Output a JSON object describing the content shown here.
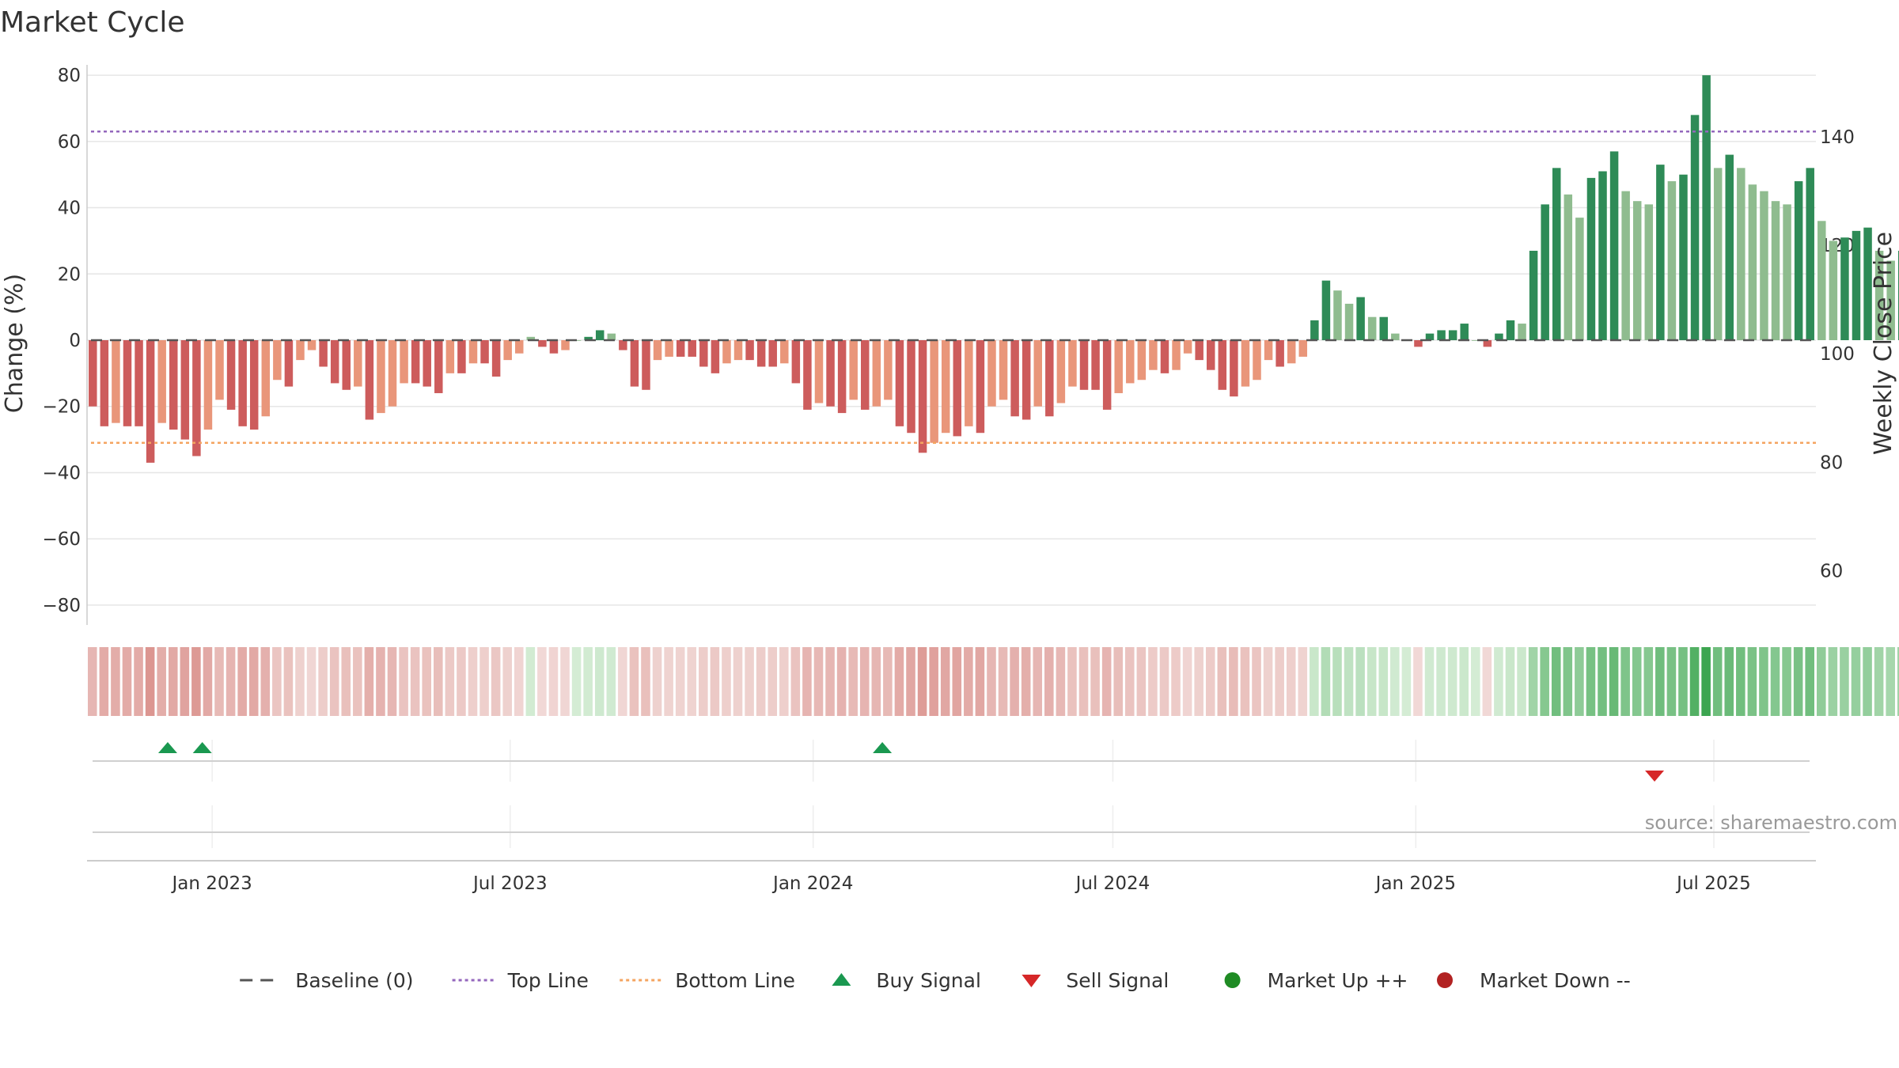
{
  "chart_data": {
    "type": "bar",
    "title": "Market Cycle",
    "ylabel_left": "Change (%)",
    "ylabel_right": "Weekly Close Price",
    "ylim_left": [
      -86,
      86
    ],
    "ylim_right": [
      50,
      155
    ],
    "yticks_left": [
      80,
      60,
      40,
      20,
      0,
      -20,
      -40,
      -60,
      -80
    ],
    "ytick_labels_left": [
      "80",
      "60",
      "40",
      "20",
      "0",
      "−20",
      "−40",
      "−60",
      "−80"
    ],
    "yticks_right": [
      140,
      120,
      100,
      80,
      60
    ],
    "ytick_labels_right": [
      "140",
      "120",
      "100",
      "80",
      "60"
    ],
    "x_start": "2022-10-17",
    "x_end": "2025-09-01",
    "x_ticks": [
      {
        "date": "2023-01-01",
        "label": "Jan 2023"
      },
      {
        "date": "2023-07-01",
        "label": "Jul 2023"
      },
      {
        "date": "2024-01-01",
        "label": "Jan 2024"
      },
      {
        "date": "2024-07-01",
        "label": "Jul 2024"
      },
      {
        "date": "2025-01-01",
        "label": "Jan 2025"
      },
      {
        "date": "2025-07-01",
        "label": "Jul 2025"
      }
    ],
    "top_line": 63,
    "bottom_line": -31,
    "baseline": 0,
    "weekly_start": "2022-10-17",
    "values": [
      -20,
      -26,
      -25,
      -26,
      -26,
      -37,
      -25,
      -27,
      -30,
      -35,
      -27,
      -18,
      -21,
      -26,
      -27,
      -23,
      -12,
      -14,
      -6,
      -3,
      -8,
      -13,
      -15,
      -14,
      -24,
      -22,
      -20,
      -13,
      -13,
      -14,
      -16,
      -10,
      -10,
      -7,
      -7,
      -11,
      -6,
      -4,
      1,
      -2,
      -4,
      -3,
      0,
      1,
      3,
      2,
      -3,
      -14,
      -15,
      -6,
      -5,
      -5,
      -5,
      -8,
      -10,
      -7,
      -6,
      -6,
      -8,
      -8,
      -7,
      -13,
      -21,
      -19,
      -20,
      -22,
      -18,
      -21,
      -20,
      -18,
      -26,
      -28,
      -34,
      -31,
      -28,
      -29,
      -26,
      -28,
      -20,
      -18,
      -23,
      -24,
      -20,
      -23,
      -19,
      -14,
      -15,
      -15,
      -21,
      -16,
      -13,
      -12,
      -9,
      -10,
      -9,
      -4,
      -6,
      -9,
      -15,
      -17,
      -14,
      -12,
      -6,
      -8,
      -7,
      -5,
      6,
      18,
      15,
      11,
      13,
      7,
      7,
      2,
      0,
      -2,
      2,
      3,
      3,
      5,
      0,
      -2,
      2,
      6,
      5,
      27,
      41,
      52,
      44,
      37,
      49,
      51,
      57,
      45,
      42,
      41,
      53,
      48,
      50,
      68,
      80,
      52,
      56,
      52,
      47,
      45,
      42,
      41,
      48,
      52,
      36,
      30,
      31,
      33,
      34,
      27,
      24,
      27
    ],
    "band_values": [
      -20,
      -26,
      -25,
      -26,
      -26,
      -37,
      -25,
      -27,
      -30,
      -35,
      -27,
      -18,
      -21,
      -26,
      -27,
      -23,
      -12,
      -14,
      -6,
      -3,
      -8,
      -13,
      -15,
      -14,
      -24,
      -22,
      -20,
      -13,
      -13,
      -14,
      -16,
      -10,
      -10,
      -7,
      -7,
      -11,
      -6,
      -4,
      1,
      -2,
      -4,
      -3,
      0,
      1,
      3,
      2,
      -3,
      -14,
      -15,
      -6,
      -5,
      -5,
      -5,
      -8,
      -10,
      -7,
      -6,
      -6,
      -8,
      -8,
      -7,
      -13,
      -21,
      -19,
      -20,
      -22,
      -18,
      -21,
      -20,
      -18,
      -26,
      -28,
      -34,
      -31,
      -28,
      -29,
      -26,
      -28,
      -20,
      -18,
      -23,
      -24,
      -20,
      -23,
      -19,
      -14,
      -15,
      -15,
      -21,
      -16,
      -13,
      -12,
      -9,
      -10,
      -9,
      -4,
      -6,
      -9,
      -15,
      -17,
      -14,
      -12,
      -6,
      -8,
      -7,
      -5,
      6,
      18,
      15,
      11,
      13,
      7,
      7,
      2,
      0,
      -2,
      2,
      3,
      3,
      5,
      0,
      -2,
      2,
      6,
      5,
      27,
      41,
      52,
      44,
      37,
      49,
      51,
      57,
      45,
      42,
      41,
      53,
      48,
      50,
      68,
      80,
      52,
      56,
      52,
      47,
      45,
      42,
      41,
      48,
      52,
      36,
      30,
      31,
      33,
      34,
      27,
      24,
      27
    ],
    "buy_signals": [
      "2022-12-05",
      "2022-12-26",
      "2024-02-12"
    ],
    "sell_signals": [
      "2025-05-26"
    ],
    "colors": {
      "down_strong": "#cd5c5c",
      "down_weak": "#e9967a",
      "up_strong": "#2e8b57",
      "up_weak": "#8fbc8f",
      "top_line": "#9467bd",
      "bottom_line": "#f4a460",
      "baseline": "#555555",
      "buy": "#1a9850",
      "sell": "#d62728",
      "market_up": "#1f8b24",
      "market_down": "#b22222"
    },
    "legend": [
      {
        "label": "Baseline (0)",
        "kind": "dash",
        "color": "#555555"
      },
      {
        "label": "Top Line",
        "kind": "dot",
        "color": "#9467bd"
      },
      {
        "label": "Bottom Line",
        "kind": "dot",
        "color": "#f4a460"
      },
      {
        "label": "Buy Signal",
        "kind": "tri-up",
        "color": "#1a9850"
      },
      {
        "label": "Sell Signal",
        "kind": "tri-down",
        "color": "#d62728"
      },
      {
        "label": "Market Up ++",
        "kind": "circle",
        "color": "#1f8b24"
      },
      {
        "label": "Market Down --",
        "kind": "circle",
        "color": "#b22222"
      }
    ],
    "source": "source: sharemaestro.com"
  }
}
